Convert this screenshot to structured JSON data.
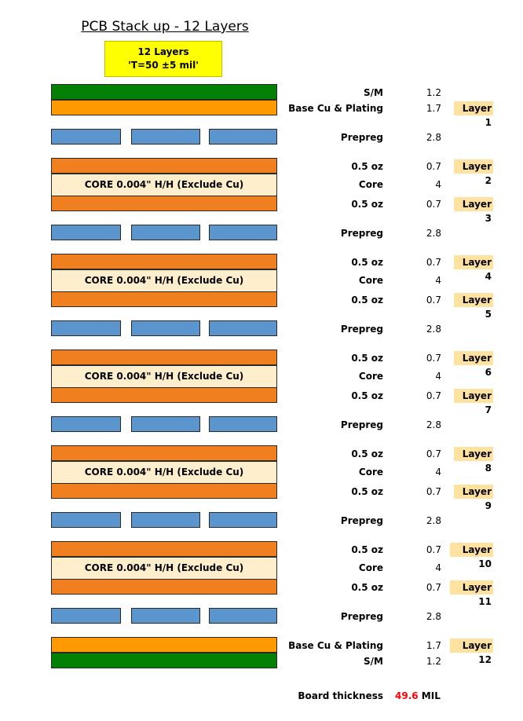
{
  "title": "PCB Stack up - 12 Layers",
  "banner": {
    "line1": "12 Layers",
    "line2": "'T=50 ±5 mil'"
  },
  "colors": {
    "solder_mask": "#048004",
    "base_copper": "#ff9900",
    "copper": "#f07f1f",
    "core": "#ffeecc",
    "prepreg": "#5a96cd",
    "layer_tag": "#ffe1a0",
    "banner": "#ffff00"
  },
  "stack": [
    {
      "type": "sm",
      "label": "S/M",
      "value": "1.2"
    },
    {
      "type": "basecu",
      "label": "Base Cu & Plating",
      "value": "1.7",
      "layer": "Layer 1"
    },
    {
      "type": "prepreg",
      "label": "Prepreg",
      "value": "2.8"
    },
    {
      "type": "cu",
      "label": "0.5 oz",
      "value": "0.7",
      "layer": "Layer 2"
    },
    {
      "type": "core",
      "label": "Core",
      "value": "4",
      "core_text": "CORE 0.004\" H/H (Exclude Cu)"
    },
    {
      "type": "cu",
      "label": "0.5 oz",
      "value": "0.7",
      "layer": "Layer 3"
    },
    {
      "type": "prepreg",
      "label": "Prepreg",
      "value": "2.8"
    },
    {
      "type": "cu",
      "label": "0.5 oz",
      "value": "0.7",
      "layer": "Layer 4"
    },
    {
      "type": "core",
      "label": "Core",
      "value": "4",
      "core_text": "CORE 0.004\" H/H (Exclude Cu)"
    },
    {
      "type": "cu",
      "label": "0.5 oz",
      "value": "0.7",
      "layer": "Layer 5"
    },
    {
      "type": "prepreg",
      "label": "Prepreg",
      "value": "2.8"
    },
    {
      "type": "cu",
      "label": "0.5 oz",
      "value": "0.7",
      "layer": "Layer 6"
    },
    {
      "type": "core",
      "label": "Core",
      "value": "4",
      "core_text": "CORE 0.004\" H/H (Exclude Cu)"
    },
    {
      "type": "cu",
      "label": "0.5 oz",
      "value": "0.7",
      "layer": "Layer 7"
    },
    {
      "type": "prepreg",
      "label": "Prepreg",
      "value": "2.8"
    },
    {
      "type": "cu",
      "label": "0.5 oz",
      "value": "0.7",
      "layer": "Layer 8"
    },
    {
      "type": "core",
      "label": "Core",
      "value": "4",
      "core_text": "CORE 0.004\" H/H (Exclude Cu)"
    },
    {
      "type": "cu",
      "label": "0.5 oz",
      "value": "0.7",
      "layer": "Layer 9"
    },
    {
      "type": "prepreg",
      "label": "Prepreg",
      "value": "2.8"
    },
    {
      "type": "cu",
      "label": "0.5 oz",
      "value": "0.7",
      "layer": "Layer 10"
    },
    {
      "type": "core",
      "label": "Core",
      "value": "4",
      "core_text": "CORE 0.004\" H/H (Exclude Cu)"
    },
    {
      "type": "cu",
      "label": "0.5 oz",
      "value": "0.7",
      "layer": "Layer 11"
    },
    {
      "type": "prepreg",
      "label": "Prepreg",
      "value": "2.8"
    },
    {
      "type": "basecu",
      "label": "Base Cu & Plating",
      "value": "1.7",
      "layer": "Layer 12"
    },
    {
      "type": "sm",
      "label": "S/M",
      "value": "1.2"
    }
  ],
  "board_thickness": {
    "label": "Board thickness",
    "value": "49.6",
    "unit": "MIL"
  }
}
